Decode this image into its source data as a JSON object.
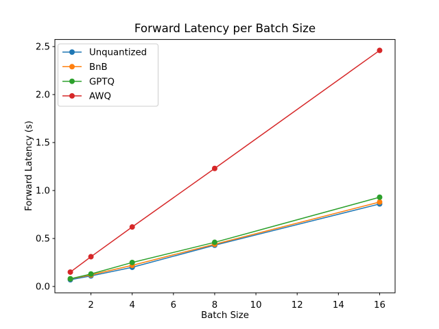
{
  "figure": {
    "background": "#ffffff",
    "spine_color": "#000000",
    "legend_border_color": "#cccccc"
  },
  "chart_data": {
    "type": "line",
    "title": "Forward Latency per Batch Size",
    "xlabel": "Batch Size",
    "ylabel": "Forward Latency (s)",
    "x": [
      1,
      2,
      4,
      8,
      16
    ],
    "series": [
      {
        "name": "Unquantized",
        "color": "#1f77b4",
        "values": [
          0.07,
          0.11,
          0.2,
          0.43,
          0.86
        ]
      },
      {
        "name": "BnB",
        "color": "#ff7f0e",
        "values": [
          0.08,
          0.12,
          0.22,
          0.44,
          0.88
        ]
      },
      {
        "name": "GPTQ",
        "color": "#2ca02c",
        "values": [
          0.08,
          0.13,
          0.25,
          0.46,
          0.93
        ]
      },
      {
        "name": "AWQ",
        "color": "#d62728",
        "values": [
          0.15,
          0.31,
          0.62,
          1.23,
          2.46
        ]
      }
    ],
    "xlim": [
      0.25,
      16.75
    ],
    "ylim": [
      -0.066,
      2.574
    ],
    "xticks": [
      2,
      4,
      6,
      8,
      10,
      12,
      14,
      16
    ],
    "yticks": [
      0.0,
      0.5,
      1.0,
      1.5,
      2.0,
      2.5
    ],
    "ytick_labels": [
      "0.0",
      "0.5",
      "1.0",
      "1.5",
      "2.0",
      "2.5"
    ],
    "grid": false,
    "legend_position": "upper-left",
    "marker": "o",
    "line_width": 1.5,
    "marker_radius": 4
  }
}
